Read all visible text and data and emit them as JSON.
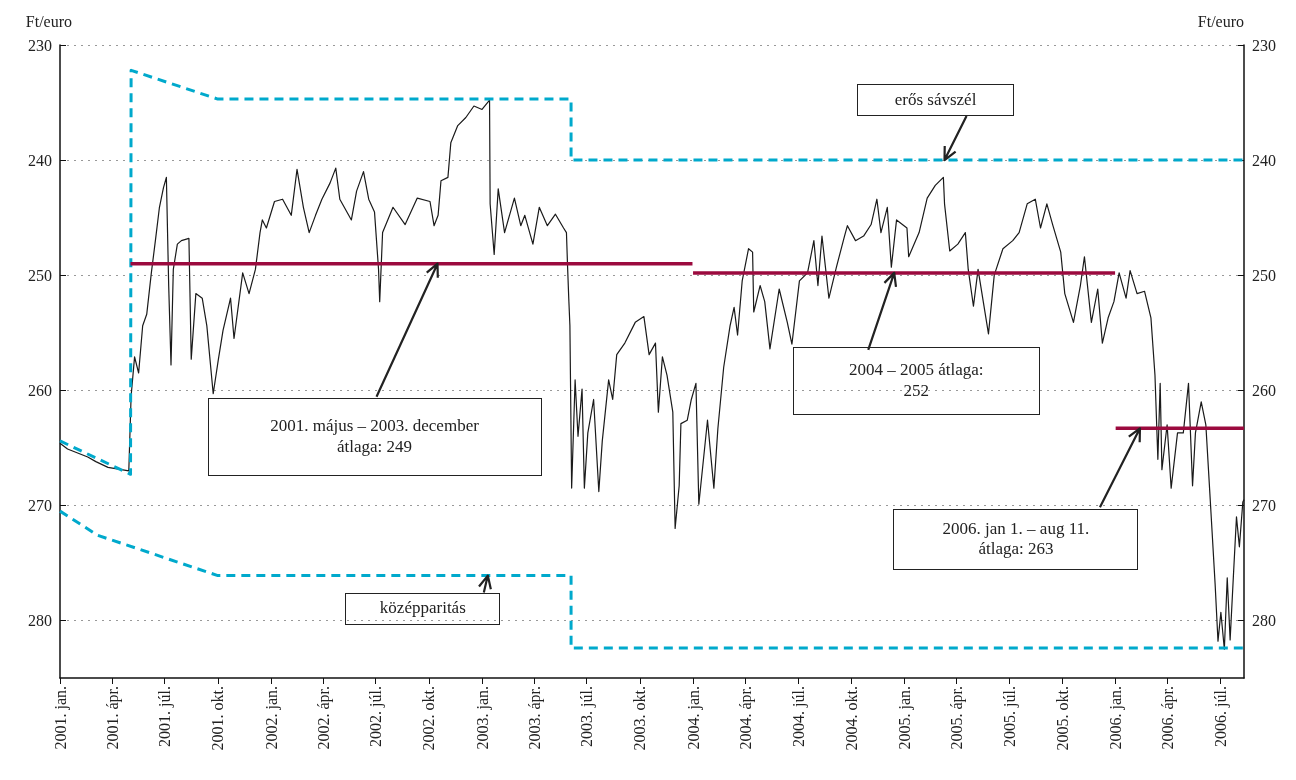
{
  "chart_data": {
    "type": "line",
    "ylabel": "Ft/euro",
    "y2label": "Ft/euro",
    "xlim": [
      "2001-01-01",
      "2006-08-11"
    ],
    "xticks": [
      {
        "value": "2001-01-01",
        "label": "2001. jan."
      },
      {
        "value": "2001-04-01",
        "label": "2001. ápr."
      },
      {
        "value": "2001-07-01",
        "label": "2001. júl."
      },
      {
        "value": "2001-10-01",
        "label": "2001. okt."
      },
      {
        "value": "2002-01-01",
        "label": "2002. jan."
      },
      {
        "value": "2002-04-01",
        "label": "2002. ápr."
      },
      {
        "value": "2002-07-01",
        "label": "2002. júl."
      },
      {
        "value": "2002-10-01",
        "label": "2002. okt."
      },
      {
        "value": "2003-01-01",
        "label": "2003. jan."
      },
      {
        "value": "2003-04-01",
        "label": "2003. ápr."
      },
      {
        "value": "2003-07-01",
        "label": "2003. júl."
      },
      {
        "value": "2003-10-01",
        "label": "2003. okt."
      },
      {
        "value": "2004-01-01",
        "label": "2004. jan."
      },
      {
        "value": "2004-04-01",
        "label": "2004. ápr."
      },
      {
        "value": "2004-07-01",
        "label": "2004. júl."
      },
      {
        "value": "2004-10-01",
        "label": "2004. okt."
      },
      {
        "value": "2005-01-01",
        "label": "2005. jan."
      },
      {
        "value": "2005-04-01",
        "label": "2005. ápr."
      },
      {
        "value": "2005-07-01",
        "label": "2005. júl."
      },
      {
        "value": "2005-10-01",
        "label": "2005. okt."
      },
      {
        "value": "2006-01-01",
        "label": "2006. jan."
      },
      {
        "value": "2006-04-01",
        "label": "2006. ápr."
      },
      {
        "value": "2006-07-01",
        "label": "2006. júl."
      }
    ],
    "ylim": [
      285,
      230
    ],
    "yticks": [
      230,
      240,
      250,
      260,
      270,
      280
    ],
    "y2lim": [
      285,
      230
    ],
    "y2ticks": [
      230,
      240,
      250,
      260,
      270,
      280
    ],
    "grid": "y",
    "annotations": [
      {
        "text": "erős sávszél",
        "x": "2005-03-11",
        "y": 240
      },
      {
        "text": "2001. május – 2003. december\nátlaga: 249",
        "x": "2002-10-16",
        "y": 249
      },
      {
        "text": "2004 – 2005 átlaga:\n252",
        "x": "2004-12-14",
        "y": 249.8
      },
      {
        "text": "2006. jan 1. – aug 11.\nátlaga: 263",
        "x": "2006-02-12",
        "y": 263.3
      },
      {
        "text": "középparitás",
        "x": "2003-01-11",
        "y": 276.1
      }
    ],
    "series": [
      {
        "color": "#1a1a1a",
        "line_style": "solid",
        "x": [
          "2001-01-01",
          "2001-01-14",
          "2001-02-18",
          "2001-03-04",
          "2001-03-25",
          "2001-04-30",
          "2001-05-04",
          "2001-05-10",
          "2001-05-17",
          "2001-05-24",
          "2001-05-31",
          "2001-06-08",
          "2001-06-15",
          "2001-06-22",
          "2001-06-29",
          "2001-07-04",
          "2001-07-08",
          "2001-07-12",
          "2001-07-16",
          "2001-07-23",
          "2001-07-30",
          "2001-08-12",
          "2001-08-16",
          "2001-08-24",
          "2001-09-04",
          "2001-09-12",
          "2001-09-23",
          "2001-10-02",
          "2001-10-10",
          "2001-10-23",
          "2001-10-29",
          "2001-11-13",
          "2001-11-24",
          "2001-12-05",
          "2001-12-13",
          "2001-12-17",
          "2001-12-24",
          "2002-01-07",
          "2002-01-21",
          "2002-02-05",
          "2002-02-15",
          "2002-02-26",
          "2002-03-08",
          "2002-03-19",
          "2002-03-30",
          "2002-04-13",
          "2002-04-23",
          "2002-04-30",
          "2002-05-20",
          "2002-05-29",
          "2002-06-10",
          "2002-06-19",
          "2002-06-29",
          "2002-07-06",
          "2002-07-08",
          "2002-07-13",
          "2002-07-31",
          "2002-08-21",
          "2002-09-11",
          "2002-10-03",
          "2002-10-10",
          "2002-10-17",
          "2002-10-22",
          "2002-11-03",
          "2002-11-08",
          "2002-11-20",
          "2002-12-04",
          "2002-12-18",
          "2003-01-01",
          "2003-01-14",
          "2003-01-15",
          "2003-01-22",
          "2003-01-29",
          "2003-02-09",
          "2003-02-26",
          "2003-03-09",
          "2003-03-16",
          "2003-03-30",
          "2003-04-10",
          "2003-04-24",
          "2003-05-08",
          "2003-05-22",
          "2003-05-27",
          "2003-05-29",
          "2003-05-31",
          "2003-06-02",
          "2003-06-05",
          "2003-06-11",
          "2003-06-16",
          "2003-06-23",
          "2003-06-27",
          "2003-07-03",
          "2003-07-13",
          "2003-07-22",
          "2003-07-28",
          "2003-08-08",
          "2003-08-15",
          "2003-08-22",
          "2003-09-05",
          "2003-09-23",
          "2003-10-08",
          "2003-10-17",
          "2003-10-28",
          "2003-11-02",
          "2003-11-09",
          "2003-11-17",
          "2003-11-27",
          "2003-12-01",
          "2003-12-08",
          "2003-12-11",
          "2003-12-22",
          "2003-12-29",
          "2004-01-06",
          "2004-01-11",
          "2004-01-26",
          "2004-02-06",
          "2004-02-13",
          "2004-02-23",
          "2004-03-05",
          "2004-03-12",
          "2004-03-18",
          "2004-03-26",
          "2004-04-06",
          "2004-04-13",
          "2004-04-15",
          "2004-04-26",
          "2004-05-04",
          "2004-05-13",
          "2004-05-29",
          "2004-06-12",
          "2004-06-20",
          "2004-07-03",
          "2004-07-17",
          "2004-07-28",
          "2004-08-04",
          "2004-08-11",
          "2004-08-23",
          "2004-09-05",
          "2004-09-19",
          "2004-09-24",
          "2004-10-08",
          "2004-10-22",
          "2004-11-04",
          "2004-11-14",
          "2004-11-21",
          "2004-12-02",
          "2004-12-09",
          "2004-12-18",
          "2005-01-05",
          "2005-01-08",
          "2005-01-26",
          "2005-02-09",
          "2005-02-23",
          "2005-03-09",
          "2005-03-11",
          "2005-03-20",
          "2005-04-03",
          "2005-04-16",
          "2005-04-21",
          "2005-04-30",
          "2005-05-08",
          "2005-05-26",
          "2005-06-05",
          "2005-06-20",
          "2005-07-07",
          "2005-07-18",
          "2005-08-01",
          "2005-08-15",
          "2005-08-24",
          "2005-09-04",
          "2005-09-14",
          "2005-09-28",
          "2005-10-05",
          "2005-10-20",
          "2005-11-01",
          "2005-11-08",
          "2005-11-20",
          "2005-12-01",
          "2005-12-09",
          "2005-12-19",
          "2005-12-29",
          "2006-01-07",
          "2006-01-19",
          "2006-01-26",
          "2006-02-07",
          "2006-02-20",
          "2006-03-03",
          "2006-03-10",
          "2006-03-15",
          "2006-03-19",
          "2006-03-22",
          "2006-03-31",
          "2006-04-07",
          "2006-04-18",
          "2006-04-28",
          "2006-05-07",
          "2006-05-14",
          "2006-05-19",
          "2006-05-29",
          "2006-06-06",
          "2006-06-13",
          "2006-06-22",
          "2006-06-27",
          "2006-07-02",
          "2006-07-08",
          "2006-07-13",
          "2006-07-18",
          "2006-07-24",
          "2006-07-29",
          "2006-08-03",
          "2006-08-09",
          "2006-08-11"
        ],
        "values": [
          264.6,
          265.1,
          265.8,
          266.2,
          266.7,
          267.0,
          260.5,
          257.1,
          258.5,
          254.4,
          253.4,
          249.8,
          247.0,
          244.1,
          242.4,
          241.5,
          250.9,
          257.8,
          249.5,
          247.3,
          247.0,
          246.8,
          257.3,
          251.6,
          252.0,
          254.4,
          260.3,
          257.3,
          254.8,
          252.0,
          255.5,
          249.8,
          251.6,
          249.5,
          246.3,
          245.2,
          245.9,
          243.6,
          243.4,
          244.8,
          240.8,
          244.1,
          246.3,
          244.8,
          243.4,
          242.0,
          240.7,
          243.4,
          245.2,
          242.7,
          241.0,
          243.4,
          244.5,
          249.5,
          252.3,
          246.3,
          244.1,
          245.6,
          243.3,
          243.6,
          245.7,
          244.8,
          241.8,
          241.5,
          238.5,
          237.0,
          236.3,
          235.3,
          235.6,
          234.8,
          243.8,
          248.2,
          242.5,
          246.3,
          243.3,
          245.7,
          244.8,
          247.3,
          244.1,
          245.7,
          244.7,
          245.9,
          246.3,
          249.3,
          252.0,
          254.4,
          268.5,
          259.1,
          264.0,
          259.9,
          268.5,
          263.7,
          260.8,
          268.8,
          264.4,
          259.1,
          260.8,
          256.9,
          255.9,
          254.1,
          253.6,
          256.9,
          255.9,
          261.9,
          257.1,
          258.7,
          261.9,
          272.0,
          268.3,
          262.9,
          262.6,
          260.8,
          259.4,
          269.9,
          262.6,
          268.5,
          263.3,
          258.0,
          254.4,
          252.8,
          255.2,
          250.5,
          247.7,
          248.0,
          253.2,
          250.9,
          252.3,
          256.4,
          251.2,
          254.1,
          256.0,
          250.5,
          249.8,
          247.0,
          250.9,
          246.6,
          252.0,
          249.3,
          246.6,
          245.7,
          247.0,
          246.6,
          245.6,
          243.4,
          246.3,
          244.1,
          249.3,
          245.2,
          245.9,
          248.4,
          246.3,
          243.3,
          242.2,
          241.5,
          243.8,
          247.9,
          247.3,
          246.3,
          249.5,
          252.7,
          249.5,
          255.1,
          250.0,
          247.7,
          247.0,
          246.3,
          243.8,
          243.4,
          245.9,
          243.8,
          245.6,
          248.0,
          251.6,
          254.1,
          250.9,
          248.4,
          254.1,
          251.2,
          255.9,
          253.7,
          252.3,
          249.8,
          252.0,
          249.6,
          251.6,
          251.4,
          253.7,
          258.7,
          266.0,
          259.4,
          266.9,
          263.0,
          268.5,
          263.7,
          263.7,
          259.4,
          268.3,
          263.7,
          261.0,
          263.0,
          269.0,
          276.8,
          281.8,
          279.3,
          282.5,
          276.3,
          281.7,
          275.8,
          271.0,
          273.6,
          269.7,
          269.5
        ]
      },
      {
        "color": "#00a9cc",
        "line_style": "dashed",
        "x": [
          "2001-01-01",
          "2001-05-03",
          "2001-05-04",
          "2001-10-01",
          "2003-06-04",
          "2003-06-04",
          "2006-08-11"
        ],
        "values": [
          264.4,
          267.3,
          232.2,
          234.7,
          234.7,
          240.0,
          240.0
        ]
      },
      {
        "color": "#00a9cc",
        "line_style": "dashed",
        "x": [
          "2001-01-01",
          "2001-03-07",
          "2001-10-01",
          "2003-06-04",
          "2003-06-04",
          "2006-08-11"
        ],
        "values": [
          270.5,
          272.6,
          276.1,
          276.1,
          282.4,
          282.4
        ]
      },
      {
        "color": "#9b0a3e",
        "line_style": "solid",
        "x": [
          "2001-05-03",
          "2003-12-31"
        ],
        "values": [
          249.0,
          249.0
        ]
      },
      {
        "color": "#9b0a3e",
        "line_style": "solid",
        "x": [
          "2004-01-01",
          "2005-12-31"
        ],
        "values": [
          249.8,
          249.8
        ]
      },
      {
        "color": "#9b0a3e",
        "line_style": "solid",
        "x": [
          "2006-01-01",
          "2006-08-11"
        ],
        "values": [
          263.3,
          263.3
        ]
      }
    ]
  }
}
